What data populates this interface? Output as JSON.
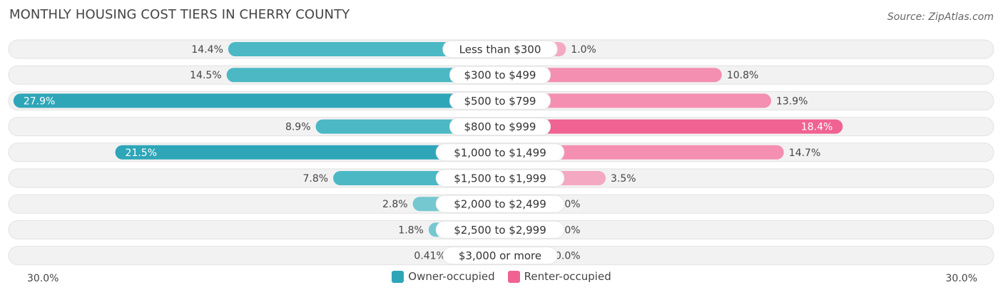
{
  "title": "MONTHLY HOUSING COST TIERS IN CHERRY COUNTY",
  "source": "Source: ZipAtlas.com",
  "colors": {
    "owner": "#4bb8c4",
    "owner_strong": "#2ea6b8",
    "renter": "#f48fb1",
    "renter_strong": "#f06292",
    "track": "#f0f0f0"
  },
  "legend": {
    "owner_label": "Owner-occupied",
    "renter_label": "Renter-occupied"
  },
  "axis": {
    "left_label": "30.0%",
    "right_label": "30.0%"
  },
  "chart_data": {
    "type": "bar",
    "orientation": "horizontal-diverging",
    "xlim": [
      -30,
      30
    ],
    "categories": [
      "Less than $300",
      "$300 to $499",
      "$500 to $799",
      "$800 to $999",
      "$1,000 to $1,499",
      "$1,500 to $1,999",
      "$2,000 to $2,499",
      "$2,500 to $2,999",
      "$3,000 or more"
    ],
    "series": [
      {
        "name": "Owner-occupied",
        "values": [
          14.4,
          14.5,
          27.9,
          8.9,
          21.5,
          7.8,
          2.8,
          1.8,
          0.41
        ],
        "labels": [
          "14.4%",
          "14.5%",
          "27.9%",
          "8.9%",
          "21.5%",
          "7.8%",
          "2.8%",
          "1.8%",
          "0.41%"
        ]
      },
      {
        "name": "Renter-occupied",
        "values": [
          1.0,
          10.8,
          13.9,
          18.4,
          14.7,
          3.5,
          0.0,
          0.0,
          0.0
        ],
        "labels": [
          "1.0%",
          "10.8%",
          "13.9%",
          "18.4%",
          "14.7%",
          "3.5%",
          "0.0%",
          "0.0%",
          "0.0%"
        ]
      }
    ]
  }
}
